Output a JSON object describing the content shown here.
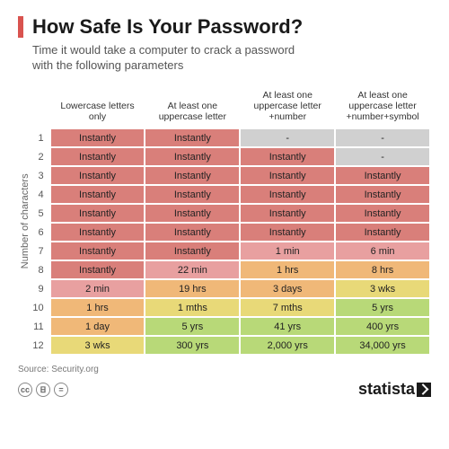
{
  "accent_color": "#d9534f",
  "title": "How Safe Is Your Password?",
  "subtitle": "Time it would take a computer to crack a password with the following parameters",
  "y_axis_label": "Number of characters",
  "columns": [
    "Lowercase letters only",
    "At least one uppercase letter",
    "At least one uppercase letter +number",
    "At least one uppercase letter +number+symbol"
  ],
  "row_labels": [
    "1",
    "2",
    "3",
    "4",
    "5",
    "6",
    "7",
    "8",
    "9",
    "10",
    "11",
    "12"
  ],
  "cells": [
    [
      {
        "v": "Instantly",
        "c": "#d97f7a"
      },
      {
        "v": "Instantly",
        "c": "#d97f7a"
      },
      {
        "v": "-",
        "c": "#d0d0d0"
      },
      {
        "v": "-",
        "c": "#d0d0d0"
      }
    ],
    [
      {
        "v": "Instantly",
        "c": "#d97f7a"
      },
      {
        "v": "Instantly",
        "c": "#d97f7a"
      },
      {
        "v": "Instantly",
        "c": "#d97f7a"
      },
      {
        "v": "-",
        "c": "#d0d0d0"
      }
    ],
    [
      {
        "v": "Instantly",
        "c": "#d97f7a"
      },
      {
        "v": "Instantly",
        "c": "#d97f7a"
      },
      {
        "v": "Instantly",
        "c": "#d97f7a"
      },
      {
        "v": "Instantly",
        "c": "#d97f7a"
      }
    ],
    [
      {
        "v": "Instantly",
        "c": "#d97f7a"
      },
      {
        "v": "Instantly",
        "c": "#d97f7a"
      },
      {
        "v": "Instantly",
        "c": "#d97f7a"
      },
      {
        "v": "Instantly",
        "c": "#d97f7a"
      }
    ],
    [
      {
        "v": "Instantly",
        "c": "#d97f7a"
      },
      {
        "v": "Instantly",
        "c": "#d97f7a"
      },
      {
        "v": "Instantly",
        "c": "#d97f7a"
      },
      {
        "v": "Instantly",
        "c": "#d97f7a"
      }
    ],
    [
      {
        "v": "Instantly",
        "c": "#d97f7a"
      },
      {
        "v": "Instantly",
        "c": "#d97f7a"
      },
      {
        "v": "Instantly",
        "c": "#d97f7a"
      },
      {
        "v": "Instantly",
        "c": "#d97f7a"
      }
    ],
    [
      {
        "v": "Instantly",
        "c": "#d97f7a"
      },
      {
        "v": "Instantly",
        "c": "#d97f7a"
      },
      {
        "v": "1 min",
        "c": "#e8a0a0"
      },
      {
        "v": "6 min",
        "c": "#e8a0a0"
      }
    ],
    [
      {
        "v": "Instantly",
        "c": "#d97f7a"
      },
      {
        "v": "22 min",
        "c": "#e8a0a0"
      },
      {
        "v": "1 hrs",
        "c": "#f0b878"
      },
      {
        "v": "8 hrs",
        "c": "#f0b878"
      }
    ],
    [
      {
        "v": "2 min",
        "c": "#e8a0a0"
      },
      {
        "v": "19 hrs",
        "c": "#f0b878"
      },
      {
        "v": "3 days",
        "c": "#f0b878"
      },
      {
        "v": "3 wks",
        "c": "#e8d978"
      }
    ],
    [
      {
        "v": "1 hrs",
        "c": "#f0b878"
      },
      {
        "v": "1 mths",
        "c": "#e8d978"
      },
      {
        "v": "7 mths",
        "c": "#e8d978"
      },
      {
        "v": "5 yrs",
        "c": "#b8d978"
      }
    ],
    [
      {
        "v": "1 day",
        "c": "#f0b878"
      },
      {
        "v": "5 yrs",
        "c": "#b8d978"
      },
      {
        "v": "41 yrs",
        "c": "#b8d978"
      },
      {
        "v": "400 yrs",
        "c": "#b8d978"
      }
    ],
    [
      {
        "v": "3 wks",
        "c": "#e8d978"
      },
      {
        "v": "300 yrs",
        "c": "#b8d978"
      },
      {
        "v": "2,000 yrs",
        "c": "#b8d978"
      },
      {
        "v": "34,000 yrs",
        "c": "#b8d978"
      }
    ]
  ],
  "source_label": "Source: Security.org",
  "brand": "statista",
  "cc": [
    "cc",
    "BY",
    "ND"
  ]
}
